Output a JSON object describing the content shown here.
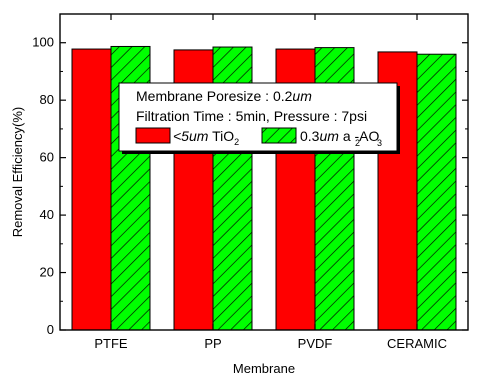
{
  "chart_data": {
    "type": "bar",
    "xlabel": "Membrane",
    "ylabel": "Removal Efficiency(%)",
    "ylim": [
      0,
      110
    ],
    "yticks": [
      0,
      20,
      40,
      60,
      80,
      100
    ],
    "categories": [
      "PTFE",
      "PP",
      "PVDF",
      "CERAMIC"
    ],
    "series": [
      {
        "name": "<5um TiO2",
        "values": [
          97.8,
          97.5,
          97.8,
          96.8
        ],
        "color": "#ff0000",
        "pattern": "solid"
      },
      {
        "name": "0.3um a-Al2O3",
        "values": [
          98.7,
          98.5,
          98.3,
          96.0
        ],
        "color": "#00ff00",
        "pattern": "hatch"
      }
    ],
    "grid": false,
    "legend_placement": "center",
    "legend": {
      "line1_prefix": "Membrane Poresize : 0.2",
      "line1_unit": "um",
      "line2": "Filtration Time : 5min, Pressure : 7psi",
      "entry1_unit": "<5um",
      "entry1_text": "TiO",
      "entry1_sub": "2",
      "entry2_prefix": "0.3",
      "entry2_unit": "um",
      "entry2_text": "a  -AO",
      "entry2_sub": "2",
      "entry2_sub2": "3"
    }
  }
}
